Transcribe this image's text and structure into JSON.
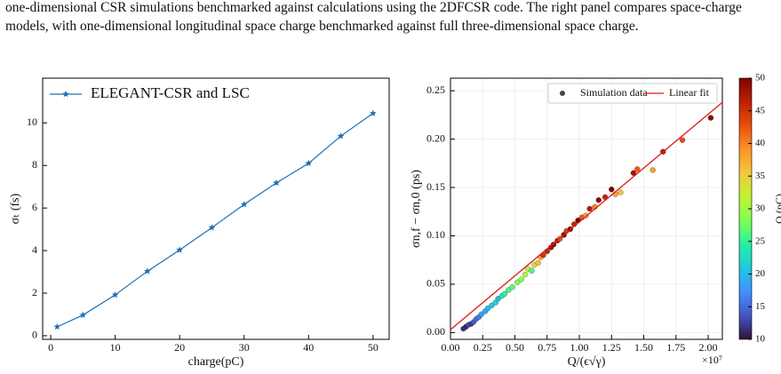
{
  "text": "one-dimensional CSR simulations benchmarked against calculations using the 2DFCSR code. The right panel compares space-charge models, with one-dimensional longitudinal space charge benchmarked against full three-dimensional space charge.",
  "chart_data": [
    {
      "type": "line",
      "x_label": "charge(pC)",
      "y_label": "σₜ (fs)",
      "xlim": [
        -1.25,
        52.5
      ],
      "ylim": [
        -0.17,
        12.1
      ],
      "xticks": [
        0,
        10,
        20,
        30,
        40,
        50
      ],
      "yticks": [
        0,
        2,
        4,
        6,
        8,
        10
      ],
      "legend": "upper-left",
      "grid": false,
      "series": [
        {
          "name": "ELEGANT-CSR and LSC",
          "color": "#1f6fb4",
          "x": [
            1,
            5,
            10,
            15,
            20,
            25,
            30,
            35,
            40,
            45,
            50
          ],
          "values": [
            0.42,
            0.97,
            1.92,
            3.03,
            4.03,
            5.08,
            6.17,
            7.18,
            8.1,
            9.38,
            10.45
          ]
        }
      ]
    },
    {
      "type": "scatter",
      "x_label": "Q/(ϵ√γ)",
      "x_offset_label": "×10⁷",
      "y_label": "σn,f − σn,0 (ps)",
      "xlim": [
        0,
        2.11
      ],
      "ylim": [
        -0.007,
        0.263
      ],
      "xticks": [
        {
          "value": 0,
          "label": "0.00"
        },
        {
          "value": 0.25,
          "label": "0.25"
        },
        {
          "value": 0.5,
          "label": "0.50"
        },
        {
          "value": 0.75,
          "label": "0.75"
        },
        {
          "value": 1,
          "label": "1.00"
        },
        {
          "value": 1.25,
          "label": "1.25"
        },
        {
          "value": 1.5,
          "label": "1.50"
        },
        {
          "value": 1.75,
          "label": "1.75"
        },
        {
          "value": 2,
          "label": "2.00"
        }
      ],
      "yticks": [
        {
          "value": 0,
          "label": "0.00"
        },
        {
          "value": 0.05,
          "label": "0.05"
        },
        {
          "value": 0.1,
          "label": "0.10"
        },
        {
          "value": 0.15,
          "label": "0.15"
        },
        {
          "value": 0.2,
          "label": "0.20"
        },
        {
          "value": 0.25,
          "label": "0.25"
        }
      ],
      "legend": "upper-right",
      "grid": true,
      "cmap": "turbo",
      "colorbar": {
        "label": "Q (pC)",
        "clim": [
          10,
          50
        ],
        "ticks": [
          10,
          15,
          20,
          25,
          30,
          35,
          40,
          45,
          50
        ]
      },
      "series": [
        {
          "name": "Simulation data",
          "color": "#444444",
          "x": [
            0.1,
            0.12,
            0.14,
            0.16,
            0.18,
            0.2,
            0.22,
            0.24,
            0.27,
            0.29,
            0.32,
            0.35,
            0.37,
            0.4,
            0.42,
            0.45,
            0.48,
            0.52,
            0.55,
            0.58,
            0.6,
            0.63,
            0.65,
            0.68,
            0.7,
            0.72,
            0.75,
            0.78,
            0.8,
            0.83,
            0.85,
            0.88,
            0.9,
            0.93,
            0.96,
            0.99,
            1.02,
            1.05,
            1.08,
            1.12,
            1.15,
            1.2,
            1.25,
            1.28,
            1.32,
            1.42,
            1.45,
            1.57,
            1.65,
            1.8,
            2.02
          ],
          "values": [
            0.004,
            0.006,
            0.008,
            0.009,
            0.011,
            0.014,
            0.016,
            0.019,
            0.022,
            0.025,
            0.028,
            0.031,
            0.035,
            0.038,
            0.04,
            0.044,
            0.047,
            0.052,
            0.055,
            0.06,
            0.066,
            0.064,
            0.07,
            0.072,
            0.078,
            0.08,
            0.084,
            0.088,
            0.091,
            0.095,
            0.097,
            0.101,
            0.105,
            0.107,
            0.112,
            0.116,
            0.119,
            0.121,
            0.128,
            0.13,
            0.137,
            0.14,
            0.148,
            0.143,
            0.145,
            0.165,
            0.169,
            0.168,
            0.187,
            0.199,
            0.222
          ],
          "color_values": [
            12,
            11,
            13,
            12,
            14,
            15,
            16,
            18,
            19,
            20,
            21,
            22,
            20,
            24,
            25,
            26,
            27,
            28,
            29,
            31,
            33,
            26,
            34,
            36,
            38,
            45,
            46,
            48,
            49,
            47,
            42,
            50,
            44,
            49,
            46,
            50,
            42,
            38,
            47,
            40,
            49,
            46,
            50,
            38,
            36,
            48,
            42,
            38,
            47,
            43,
            49
          ]
        },
        {
          "name": "Linear fit",
          "color": "#e01b1b",
          "x": [
            0,
            2.11
          ],
          "values": [
            0.003,
            0.238
          ]
        }
      ]
    }
  ]
}
